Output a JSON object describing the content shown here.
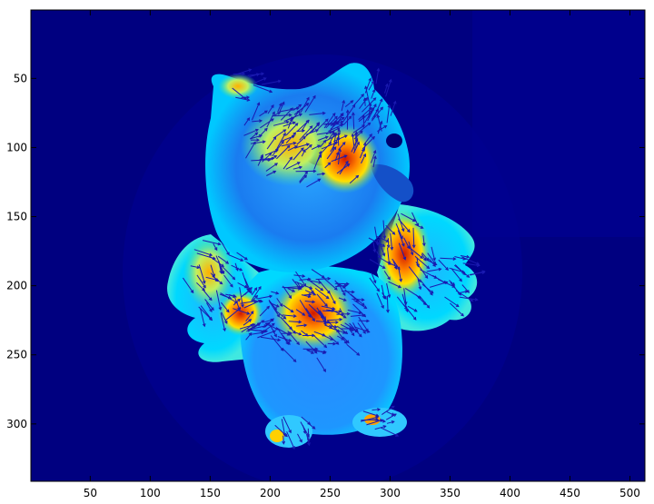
{
  "figure": {
    "image_subject": "owl figurine intensity heatmap with gradient vector field overlay",
    "colormap": "jet",
    "colors": {
      "background": "#000080",
      "low": "#0000b4",
      "mid_cyan": "#00d8ff",
      "mid_green": "#40e0a0",
      "high_yellow": "#ffe000",
      "high_orange": "#ff8000",
      "peak_red": "#d01800",
      "arrows": "#1a1ab0"
    },
    "x_axis": {
      "range": [
        1,
        512
      ],
      "ticks": [
        "50",
        "100",
        "150",
        "200",
        "250",
        "300",
        "350",
        "400",
        "450",
        "500"
      ]
    },
    "y_axis": {
      "range": [
        1,
        341
      ],
      "reversed": true,
      "ticks": [
        "50",
        "100",
        "150",
        "200",
        "250",
        "300"
      ]
    }
  }
}
